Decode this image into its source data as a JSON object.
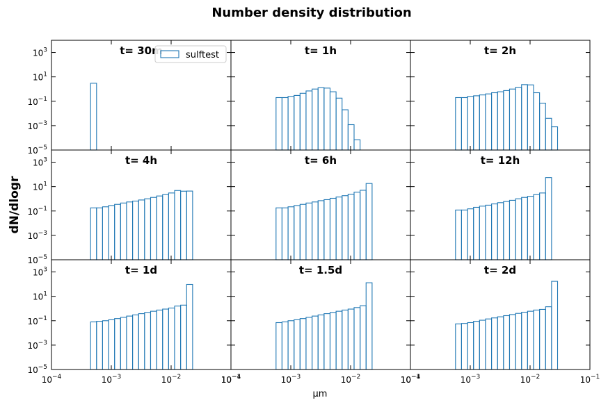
{
  "figure": {
    "suptitle": "Number density distribution",
    "ylabel": "dN/dlogr",
    "xlabel": "μm"
  },
  "legend": {
    "label": "sulftest",
    "placement": "top-right of first panel"
  },
  "chart_data": {
    "type": "bar",
    "style": "step histogram (unfilled bars)",
    "series_color": "#1f77b4",
    "x_scale": "log",
    "y_scale": "log",
    "xlim": [
      0.0001,
      0.1
    ],
    "ylim": [
      1e-05,
      10000
    ],
    "x_ticks": [
      {
        "value": 0.0001,
        "base": "10",
        "exp": "−4"
      },
      {
        "value": 0.001,
        "base": "10",
        "exp": "−3"
      },
      {
        "value": 0.01,
        "base": "10",
        "exp": "−2"
      },
      {
        "value": 0.1,
        "base": "10",
        "exp": "−1"
      }
    ],
    "y_ticks": [
      {
        "value": 1e-05,
        "base": "10",
        "exp": "−5"
      },
      {
        "value": 0.001,
        "base": "10",
        "exp": "−3"
      },
      {
        "value": 0.1,
        "base": "10",
        "exp": "−1"
      },
      {
        "value": 10,
        "base": "10",
        "exp": "1"
      },
      {
        "value": 1000,
        "base": "10",
        "exp": "3"
      }
    ],
    "bin_edges": [
      0.00045,
      0.000567,
      0.000714,
      0.0009,
      0.001134,
      0.001428,
      0.0018,
      0.002268,
      0.002857,
      0.0036,
      0.004536,
      0.005715,
      0.0072,
      0.009072,
      0.01143,
      0.0144,
      0.018144,
      0.02286,
      0.0288
    ],
    "panels": [
      {
        "title": "t= 30m",
        "values": [
          3,
          0,
          0,
          0,
          0,
          0,
          0,
          0,
          0,
          0,
          0,
          0,
          0,
          0,
          0,
          0,
          0,
          0
        ]
      },
      {
        "title": "t= 1h",
        "values": [
          0,
          0.2,
          0.2,
          0.25,
          0.3,
          0.45,
          0.7,
          1.0,
          1.3,
          1.2,
          0.6,
          0.18,
          0.02,
          0.0012,
          7e-05,
          0,
          0,
          0
        ]
      },
      {
        "title": "t= 2h",
        "values": [
          0,
          0.2,
          0.2,
          0.25,
          0.28,
          0.33,
          0.4,
          0.5,
          0.6,
          0.75,
          1.0,
          1.4,
          2.3,
          2.2,
          0.5,
          0.07,
          0.004,
          0.0008
        ]
      },
      {
        "title": "t= 4h",
        "values": [
          0.18,
          0.18,
          0.22,
          0.28,
          0.35,
          0.45,
          0.55,
          0.65,
          0.8,
          1.0,
          1.3,
          1.7,
          2.2,
          3.0,
          4.8,
          4.2,
          4.3,
          0
        ]
      },
      {
        "title": "t= 6h",
        "values": [
          0,
          0.18,
          0.18,
          0.22,
          0.28,
          0.35,
          0.45,
          0.55,
          0.7,
          0.85,
          1.1,
          1.4,
          1.8,
          2.4,
          3.5,
          5.0,
          18,
          0
        ]
      },
      {
        "title": "t= 12h",
        "values": [
          0,
          0.12,
          0.12,
          0.15,
          0.2,
          0.25,
          0.3,
          0.38,
          0.48,
          0.6,
          0.75,
          1.0,
          1.3,
          1.6,
          2.2,
          3.0,
          55,
          0
        ]
      },
      {
        "title": "t= 1d",
        "values": [
          0.08,
          0.09,
          0.1,
          0.12,
          0.15,
          0.19,
          0.24,
          0.3,
          0.38,
          0.48,
          0.6,
          0.75,
          0.9,
          1.1,
          1.6,
          1.9,
          95,
          0
        ]
      },
      {
        "title": "t= 1.5d",
        "values": [
          0,
          0.07,
          0.08,
          0.1,
          0.12,
          0.15,
          0.19,
          0.24,
          0.3,
          0.38,
          0.48,
          0.6,
          0.75,
          0.9,
          1.2,
          1.7,
          130,
          0
        ]
      },
      {
        "title": "t= 2d",
        "values": [
          0,
          0.055,
          0.06,
          0.07,
          0.09,
          0.11,
          0.14,
          0.17,
          0.21,
          0.26,
          0.32,
          0.4,
          0.5,
          0.6,
          0.75,
          0.85,
          1.4,
          170
        ]
      }
    ]
  }
}
